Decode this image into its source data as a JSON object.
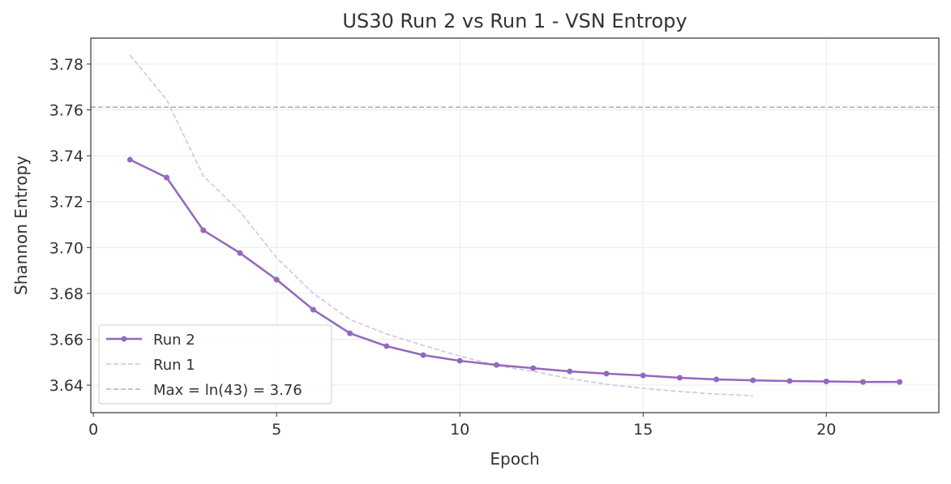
{
  "chart_data": {
    "type": "line",
    "title": "US30 Run 2 vs Run 1 - VSN Entropy",
    "xlabel": "Epoch",
    "ylabel": "Shannon Entropy",
    "xlim": [
      -0.07,
      23.07
    ],
    "ylim": [
      3.628,
      3.7913
    ],
    "xticks": [
      0,
      5,
      10,
      15,
      20
    ],
    "yticks": [
      3.64,
      3.66,
      3.68,
      3.7,
      3.72,
      3.74,
      3.76,
      3.78
    ],
    "ytick_labels": [
      "3.64",
      "3.66",
      "3.68",
      "3.70",
      "3.72",
      "3.74",
      "3.76",
      "3.78"
    ],
    "grid": true,
    "legend_position": "lower-left",
    "series": [
      {
        "name": "Run 2",
        "color": "#9467bd",
        "style": "solid-markers",
        "x": [
          1,
          2,
          3,
          4,
          5,
          6,
          7,
          8,
          9,
          10,
          11,
          12,
          13,
          14,
          15,
          16,
          17,
          18,
          19,
          20,
          21,
          22
        ],
        "y": [
          3.7383,
          3.7305,
          3.7075,
          3.6976,
          3.686,
          3.6729,
          3.6626,
          3.657,
          3.6531,
          3.6506,
          3.6488,
          3.6474,
          3.646,
          3.645,
          3.6442,
          3.6432,
          3.6425,
          3.6421,
          3.6418,
          3.6416,
          3.6414,
          3.6414
        ]
      },
      {
        "name": "Run 1",
        "color": "#d4c3e5",
        "style": "dashed",
        "x": [
          1,
          2,
          3,
          4,
          5,
          6,
          7,
          8,
          9,
          10,
          11,
          12,
          13,
          14,
          15,
          16,
          17,
          18
        ],
        "y": [
          3.7839,
          3.7644,
          3.7312,
          3.7157,
          3.6955,
          3.68,
          3.6686,
          3.6623,
          3.6573,
          3.6527,
          3.6485,
          3.646,
          3.6428,
          3.6404,
          3.6386,
          3.6372,
          3.6361,
          3.6354
        ]
      }
    ],
    "reference_line": {
      "name": "Max = ln(43) = 3.76",
      "y": 3.7612,
      "color": "#b8b0b8",
      "style": "dashed"
    }
  }
}
